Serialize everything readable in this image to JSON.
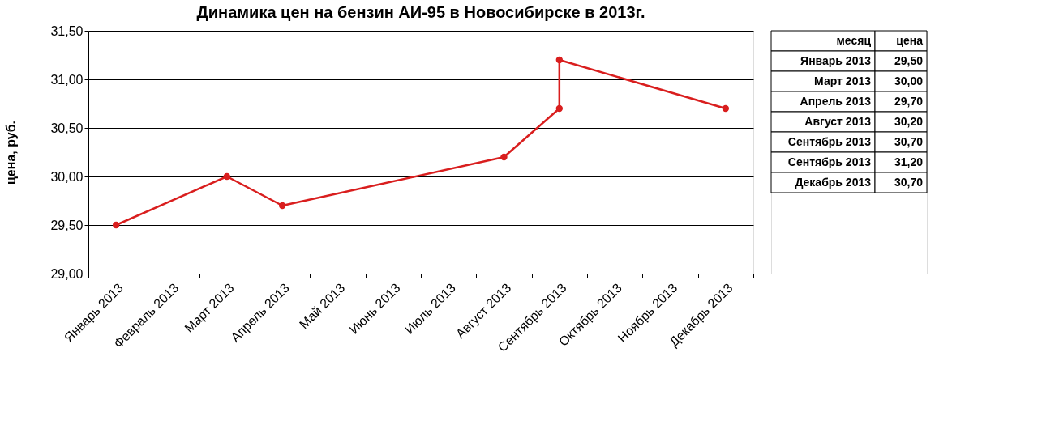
{
  "chart_data": {
    "type": "line",
    "title": "Динамика цен на бензин АИ-95 в Новосибирске в 2013г.",
    "ylabel": "цена, руб.",
    "categories": [
      "Январь 2013",
      "Февраль 2013",
      "Март 2013",
      "Апрель 2013",
      "Май 2013",
      "Июнь 2013",
      "Июль 2013",
      "Август 2013",
      "Сентябрь 2013",
      "Октябрь 2013",
      "Ноябрь 2013",
      "Декабрь 2013"
    ],
    "series": [
      {
        "color": "#d91e1e",
        "x": [
          "Январь 2013",
          "Март 2013",
          "Апрель 2013",
          "Август 2013",
          "Сентябрь 2013",
          "Сентябрь 2013",
          "Декабрь 2013"
        ],
        "values": [
          29.5,
          30.0,
          29.7,
          30.2,
          30.7,
          31.2,
          30.7
        ]
      }
    ],
    "annotations": [
      "месяц",
      "цена",
      "Январь 2013",
      "29,50",
      "Март 2013",
      "30,00",
      "Апрель 2013",
      "29,70",
      "Август 2013",
      "30,20",
      "Сентябрь 2013",
      "30,70",
      "Сентябрь 2013",
      "31,20",
      "Декабрь 2013",
      "30,70"
    ],
    "ylim": [
      29.0,
      31.5
    ],
    "yticks": [
      {
        "value": 29.0,
        "label": "29,00"
      },
      {
        "value": 29.5,
        "label": "29,50"
      },
      {
        "value": 30.0,
        "label": "30,00"
      },
      {
        "value": 30.5,
        "label": "30,50"
      },
      {
        "value": 31.0,
        "label": "31,00"
      },
      {
        "value": 31.5,
        "label": "31,50"
      }
    ],
    "grid": "y",
    "marker": "circle",
    "line_style": "solid"
  }
}
